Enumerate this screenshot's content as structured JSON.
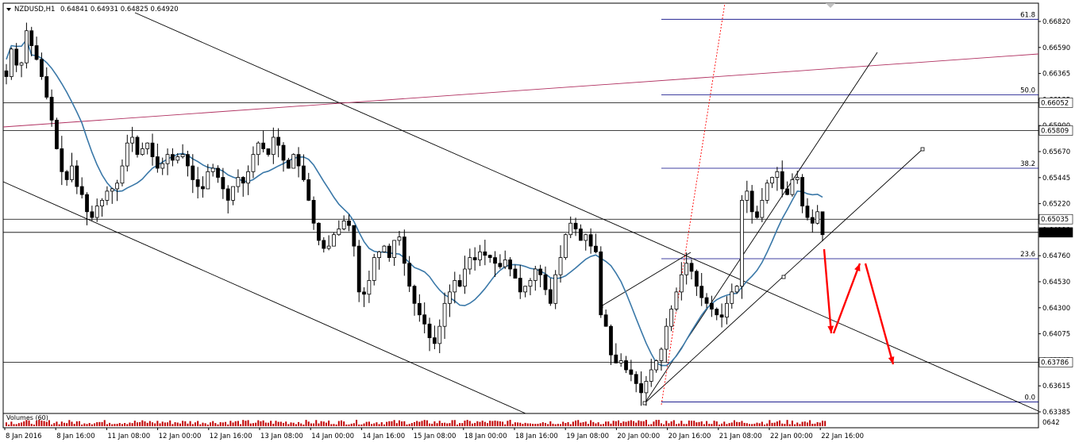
{
  "header": {
    "symbol": "NZDUSD,H1",
    "ohlc": "0.64841 0.64931 0.64825 0.64920"
  },
  "volume_label": "Volumes (60)",
  "colors": {
    "candle": "#000000",
    "ma": "#3a78a8",
    "fib": "#000080",
    "trend": "#000000",
    "arc": "#b03060",
    "red": "#ff0000",
    "volume": "#c00000",
    "hline": "#000000"
  },
  "chart_data": {
    "type": "candlestick",
    "symbol": "NZDUSD",
    "timeframe": "H1",
    "ylim": [
      0.6336,
      0.669
    ],
    "y_ticks": [
      "0.66820",
      "0.66590",
      "0.66365",
      "0.66135",
      "0.65900",
      "0.65670",
      "0.65445",
      "0.65220",
      "0.64990",
      "0.64760",
      "0.64530",
      "0.64300",
      "0.64075",
      "0.63845",
      "0.63615",
      "0.63385"
    ],
    "x_ticks": [
      "8 Jan 2016",
      "8 Jan 16:00",
      "11 Jan 08:00",
      "12 Jan 00:00",
      "12 Jan 16:00",
      "13 Jan 08:00",
      "14 Jan 00:00",
      "14 Jan 16:00",
      "15 Jan 08:00",
      "18 Jan 00:00",
      "18 Jan 16:00",
      "19 Jan 08:00",
      "20 Jan 00:00",
      "20 Jan 16:00",
      "21 Jan 08:00",
      "22 Jan 00:00",
      "22 Jan 16:00"
    ],
    "price_labels": [
      {
        "value": "0.66052",
        "price": 0.66052,
        "label": "0.66052"
      },
      {
        "value": "0.65809",
        "price": 0.65809,
        "label": "0.65809"
      },
      {
        "value": "0.65035",
        "price": 0.65035,
        "label": "0.65035"
      },
      {
        "value": "0.64920",
        "price": 0.6492,
        "label": "0.64920"
      },
      {
        "value": "0.63786",
        "price": 0.63786,
        "label": "0.63786"
      }
    ],
    "fibonacci": [
      {
        "level": "61.8",
        "price": 0.6678
      },
      {
        "level": "50.0",
        "price": 0.6612
      },
      {
        "level": "38.2",
        "price": 0.6548
      },
      {
        "level": "23.6",
        "price": 0.6469
      },
      {
        "level": "0.0",
        "price": 0.6344
      }
    ],
    "volume_axis_label": "0642",
    "close_series": [
      0.6628,
      0.6652,
      0.6638,
      0.664,
      0.6668,
      0.6655,
      0.6643,
      0.6628,
      0.661,
      0.659,
      0.6565,
      0.6545,
      0.6538,
      0.655,
      0.6532,
      0.6525,
      0.651,
      0.6505,
      0.6515,
      0.652,
      0.6528,
      0.653,
      0.6535,
      0.655,
      0.657,
      0.6575,
      0.656,
      0.6565,
      0.657,
      0.6558,
      0.6548,
      0.6552,
      0.656,
      0.6555,
      0.6558,
      0.656,
      0.655,
      0.6538,
      0.6532,
      0.653,
      0.6545,
      0.6548,
      0.654,
      0.653,
      0.652,
      0.6532,
      0.654,
      0.6535,
      0.6545,
      0.656,
      0.657,
      0.6565,
      0.656,
      0.6575,
      0.6568,
      0.6555,
      0.6548,
      0.656,
      0.655,
      0.6538,
      0.652,
      0.65,
      0.6485,
      0.6478,
      0.648,
      0.649,
      0.6495,
      0.6502,
      0.6498,
      0.648,
      0.644,
      0.6438,
      0.645,
      0.647,
      0.6475,
      0.648,
      0.647,
      0.6485,
      0.6488,
      0.6465,
      0.6445,
      0.643,
      0.642,
      0.6412,
      0.64,
      0.6395,
      0.641,
      0.643,
      0.644,
      0.645,
      0.6445,
      0.646,
      0.647,
      0.6468,
      0.6475,
      0.6472,
      0.647,
      0.6465,
      0.6462,
      0.6468,
      0.646,
      0.6452,
      0.644,
      0.6445,
      0.645,
      0.646,
      0.6455,
      0.6442,
      0.643,
      0.6455,
      0.647,
      0.649,
      0.65,
      0.6495,
      0.6485,
      0.649,
      0.648,
      0.6475,
      0.642,
      0.641,
      0.6385,
      0.6378,
      0.638,
      0.6372,
      0.6368,
      0.636,
      0.6352,
      0.6362,
      0.6372,
      0.638,
      0.639,
      0.641,
      0.6425,
      0.644,
      0.6455,
      0.6465,
      0.6458,
      0.6445,
      0.6435,
      0.643,
      0.6425,
      0.642,
      0.6418,
      0.643,
      0.644,
      0.6445,
      0.652,
      0.6528,
      0.651,
      0.6505,
      0.652,
      0.6535,
      0.654,
      0.6545,
      0.653,
      0.6525,
      0.6538,
      0.654,
      0.6515,
      0.6505,
      0.65,
      0.651,
      0.649
    ]
  }
}
